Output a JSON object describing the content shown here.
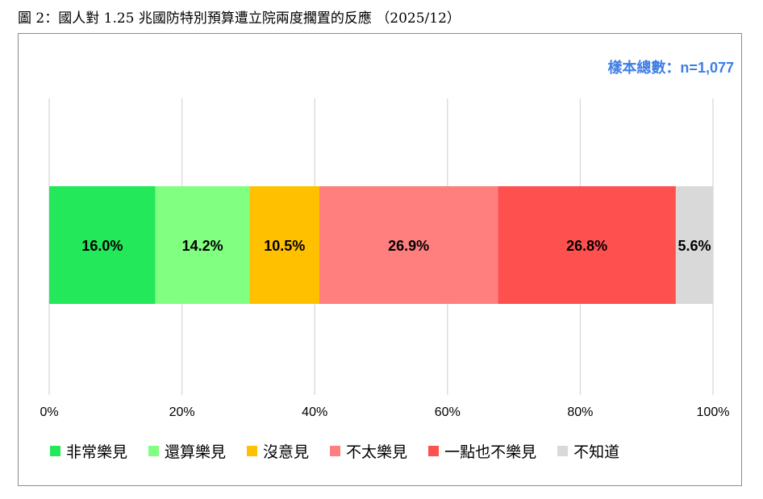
{
  "caption": "圖 2：國人對 1.25 兆國防特別預算遭立院兩度擱置的反應 （2025/12）",
  "sample_label": "樣本總數：n=1,077",
  "chart_data": {
    "type": "bar",
    "orientation": "horizontal-stacked-100",
    "title": "",
    "xlabel": "",
    "ylabel": "",
    "xlim": [
      0,
      100
    ],
    "x_ticks": [
      "0%",
      "20%",
      "40%",
      "60%",
      "80%",
      "100%"
    ],
    "grid": true,
    "legend_position": "bottom",
    "series": [
      {
        "name": "非常樂見",
        "value": 16.0,
        "label": "16.0%",
        "color": "#22e85a"
      },
      {
        "name": "還算樂見",
        "value": 14.2,
        "label": "14.2%",
        "color": "#80ff80"
      },
      {
        "name": "沒意見",
        "value": 10.5,
        "label": "10.5%",
        "color": "#ffc000"
      },
      {
        "name": "不太樂見",
        "value": 26.9,
        "label": "26.9%",
        "color": "#ff7f7f"
      },
      {
        "name": "一點也不樂見",
        "value": 26.8,
        "label": "26.8%",
        "color": "#ff5050"
      },
      {
        "name": "不知道",
        "value": 5.6,
        "label": "5.6%",
        "color": "#d9d9d9"
      }
    ]
  }
}
